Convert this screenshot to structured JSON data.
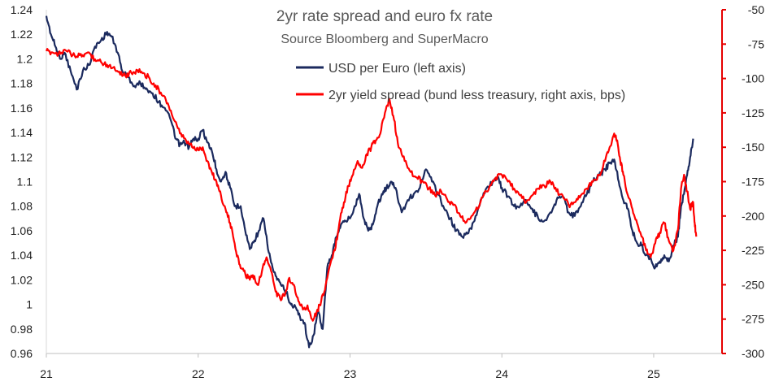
{
  "chart_data": {
    "type": "line",
    "title": "2yr rate spread and euro fx rate",
    "subtitle": "Source Bloomberg and SuperMacro",
    "x_ticks": [
      "21",
      "22",
      "23",
      "24",
      "25"
    ],
    "x_range": [
      2021.0,
      2025.45
    ],
    "left_axis": {
      "label": "USD per Euro",
      "range": [
        0.96,
        1.24
      ],
      "ticks": [
        "1.24",
        "1.22",
        "1.2",
        "1.18",
        "1.16",
        "1.14",
        "1.12",
        "1.1",
        "1.08",
        "1.06",
        "1.04",
        "1.02",
        "1",
        "0.98",
        "0.96"
      ],
      "color": "#1f1f1f"
    },
    "right_axis": {
      "label": "bps",
      "range": [
        -300,
        -50
      ],
      "ticks": [
        "-50",
        "-75",
        "-100",
        "-125",
        "-150",
        "-175",
        "-200",
        "-225",
        "-250",
        "-275",
        "-300"
      ],
      "color": "#e60000"
    },
    "legend": [
      "USD per Euro (left axis)",
      "2yr yield spread (bund less treasury, right axis, bps)"
    ],
    "series": [
      {
        "name": "USD per Euro (left axis)",
        "axis": "left",
        "color": "#1b2a5e",
        "points": [
          [
            2021.0,
            1.235
          ],
          [
            2021.03,
            1.22
          ],
          [
            2021.06,
            1.21
          ],
          [
            2021.09,
            1.2
          ],
          [
            2021.12,
            1.205
          ],
          [
            2021.16,
            1.19
          ],
          [
            2021.2,
            1.175
          ],
          [
            2021.24,
            1.19
          ],
          [
            2021.28,
            1.195
          ],
          [
            2021.32,
            1.21
          ],
          [
            2021.36,
            1.215
          ],
          [
            2021.4,
            1.222
          ],
          [
            2021.43,
            1.218
          ],
          [
            2021.47,
            1.205
          ],
          [
            2021.5,
            1.19
          ],
          [
            2021.54,
            1.185
          ],
          [
            2021.58,
            1.178
          ],
          [
            2021.62,
            1.18
          ],
          [
            2021.66,
            1.176
          ],
          [
            2021.7,
            1.172
          ],
          [
            2021.74,
            1.165
          ],
          [
            2021.78,
            1.16
          ],
          [
            2021.82,
            1.15
          ],
          [
            2021.85,
            1.135
          ],
          [
            2021.88,
            1.13
          ],
          [
            2021.91,
            1.132
          ],
          [
            2021.94,
            1.128
          ],
          [
            2021.97,
            1.135
          ],
          [
            2022.0,
            1.135
          ],
          [
            2022.03,
            1.142
          ],
          [
            2022.06,
            1.132
          ],
          [
            2022.09,
            1.125
          ],
          [
            2022.12,
            1.11
          ],
          [
            2022.15,
            1.1
          ],
          [
            2022.18,
            1.108
          ],
          [
            2022.21,
            1.095
          ],
          [
            2022.24,
            1.08
          ],
          [
            2022.28,
            1.08
          ],
          [
            2022.31,
            1.06
          ],
          [
            2022.34,
            1.045
          ],
          [
            2022.37,
            1.052
          ],
          [
            2022.4,
            1.06
          ],
          [
            2022.43,
            1.07
          ],
          [
            2022.46,
            1.045
          ],
          [
            2022.49,
            1.03
          ],
          [
            2022.52,
            1.02
          ],
          [
            2022.55,
            1.015
          ],
          [
            2022.58,
            1.01
          ],
          [
            2022.61,
            1.0
          ],
          [
            2022.64,
            0.998
          ],
          [
            2022.67,
            0.99
          ],
          [
            2022.7,
            0.985
          ],
          [
            2022.73,
            0.965
          ],
          [
            2022.76,
            0.975
          ],
          [
            2022.79,
            0.995
          ],
          [
            2022.82,
            0.98
          ],
          [
            2022.85,
            1.03
          ],
          [
            2022.88,
            1.04
          ],
          [
            2022.91,
            1.055
          ],
          [
            2022.94,
            1.065
          ],
          [
            2022.97,
            1.068
          ],
          [
            2023.0,
            1.07
          ],
          [
            2023.03,
            1.08
          ],
          [
            2023.06,
            1.09
          ],
          [
            2023.09,
            1.07
          ],
          [
            2023.12,
            1.06
          ],
          [
            2023.15,
            1.065
          ],
          [
            2023.18,
            1.08
          ],
          [
            2023.21,
            1.09
          ],
          [
            2023.24,
            1.095
          ],
          [
            2023.27,
            1.1
          ],
          [
            2023.3,
            1.095
          ],
          [
            2023.34,
            1.075
          ],
          [
            2023.38,
            1.085
          ],
          [
            2023.42,
            1.09
          ],
          [
            2023.46,
            1.095
          ],
          [
            2023.5,
            1.11
          ],
          [
            2023.54,
            1.1
          ],
          [
            2023.58,
            1.09
          ],
          [
            2023.62,
            1.078
          ],
          [
            2023.66,
            1.07
          ],
          [
            2023.7,
            1.06
          ],
          [
            2023.74,
            1.055
          ],
          [
            2023.78,
            1.058
          ],
          [
            2023.82,
            1.068
          ],
          [
            2023.86,
            1.085
          ],
          [
            2023.9,
            1.095
          ],
          [
            2023.94,
            1.1
          ],
          [
            2023.97,
            1.104
          ],
          [
            2024.0,
            1.095
          ],
          [
            2024.04,
            1.088
          ],
          [
            2024.08,
            1.08
          ],
          [
            2024.12,
            1.08
          ],
          [
            2024.16,
            1.085
          ],
          [
            2024.2,
            1.078
          ],
          [
            2024.24,
            1.07
          ],
          [
            2024.28,
            1.068
          ],
          [
            2024.32,
            1.075
          ],
          [
            2024.36,
            1.085
          ],
          [
            2024.4,
            1.088
          ],
          [
            2024.44,
            1.075
          ],
          [
            2024.48,
            1.072
          ],
          [
            2024.52,
            1.08
          ],
          [
            2024.56,
            1.09
          ],
          [
            2024.6,
            1.1
          ],
          [
            2024.64,
            1.105
          ],
          [
            2024.68,
            1.11
          ],
          [
            2024.71,
            1.115
          ],
          [
            2024.74,
            1.118
          ],
          [
            2024.77,
            1.1
          ],
          [
            2024.8,
            1.085
          ],
          [
            2024.83,
            1.078
          ],
          [
            2024.86,
            1.06
          ],
          [
            2024.89,
            1.05
          ],
          [
            2024.92,
            1.048
          ],
          [
            2024.95,
            1.04
          ],
          [
            2024.98,
            1.038
          ],
          [
            2025.01,
            1.03
          ],
          [
            2025.04,
            1.035
          ],
          [
            2025.07,
            1.04
          ],
          [
            2025.1,
            1.035
          ],
          [
            2025.13,
            1.048
          ],
          [
            2025.16,
            1.055
          ],
          [
            2025.18,
            1.08
          ],
          [
            2025.2,
            1.09
          ],
          [
            2025.22,
            1.105
          ],
          [
            2025.24,
            1.12
          ],
          [
            2025.26,
            1.135
          ]
        ]
      },
      {
        "name": "2yr yield spread (bund less treasury, right axis, bps)",
        "axis": "right",
        "color": "#ff0000",
        "points": [
          [
            2021.0,
            -80
          ],
          [
            2021.04,
            -81
          ],
          [
            2021.08,
            -82
          ],
          [
            2021.12,
            -79
          ],
          [
            2021.16,
            -82
          ],
          [
            2021.2,
            -84
          ],
          [
            2021.24,
            -83
          ],
          [
            2021.28,
            -81
          ],
          [
            2021.32,
            -86
          ],
          [
            2021.36,
            -88
          ],
          [
            2021.4,
            -90
          ],
          [
            2021.44,
            -92
          ],
          [
            2021.48,
            -95
          ],
          [
            2021.52,
            -98
          ],
          [
            2021.56,
            -96
          ],
          [
            2021.6,
            -94
          ],
          [
            2021.64,
            -96
          ],
          [
            2021.68,
            -100
          ],
          [
            2021.72,
            -105
          ],
          [
            2021.76,
            -112
          ],
          [
            2021.8,
            -118
          ],
          [
            2021.84,
            -130
          ],
          [
            2021.88,
            -140
          ],
          [
            2021.92,
            -145
          ],
          [
            2021.96,
            -150
          ],
          [
            2022.0,
            -152
          ],
          [
            2022.03,
            -150
          ],
          [
            2022.06,
            -160
          ],
          [
            2022.09,
            -168
          ],
          [
            2022.12,
            -175
          ],
          [
            2022.15,
            -185
          ],
          [
            2022.18,
            -195
          ],
          [
            2022.21,
            -205
          ],
          [
            2022.24,
            -220
          ],
          [
            2022.27,
            -235
          ],
          [
            2022.3,
            -240
          ],
          [
            2022.33,
            -245
          ],
          [
            2022.36,
            -243
          ],
          [
            2022.39,
            -250
          ],
          [
            2022.42,
            -240
          ],
          [
            2022.45,
            -230
          ],
          [
            2022.48,
            -240
          ],
          [
            2022.51,
            -255
          ],
          [
            2022.54,
            -260
          ],
          [
            2022.57,
            -258
          ],
          [
            2022.6,
            -245
          ],
          [
            2022.63,
            -250
          ],
          [
            2022.66,
            -262
          ],
          [
            2022.69,
            -268
          ],
          [
            2022.72,
            -265
          ],
          [
            2022.75,
            -275
          ],
          [
            2022.78,
            -270
          ],
          [
            2022.81,
            -262
          ],
          [
            2022.84,
            -250
          ],
          [
            2022.87,
            -235
          ],
          [
            2022.9,
            -225
          ],
          [
            2022.93,
            -205
          ],
          [
            2022.96,
            -190
          ],
          [
            2022.99,
            -178
          ],
          [
            2023.02,
            -170
          ],
          [
            2023.05,
            -160
          ],
          [
            2023.08,
            -165
          ],
          [
            2023.11,
            -155
          ],
          [
            2023.14,
            -150
          ],
          [
            2023.17,
            -145
          ],
          [
            2023.2,
            -140
          ],
          [
            2023.23,
            -125
          ],
          [
            2023.26,
            -115
          ],
          [
            2023.29,
            -130
          ],
          [
            2023.32,
            -150
          ],
          [
            2023.36,
            -160
          ],
          [
            2023.4,
            -168
          ],
          [
            2023.44,
            -172
          ],
          [
            2023.48,
            -175
          ],
          [
            2023.52,
            -180
          ],
          [
            2023.56,
            -185
          ],
          [
            2023.6,
            -182
          ],
          [
            2023.64,
            -188
          ],
          [
            2023.68,
            -192
          ],
          [
            2023.72,
            -198
          ],
          [
            2023.76,
            -205
          ],
          [
            2023.8,
            -200
          ],
          [
            2023.84,
            -195
          ],
          [
            2023.88,
            -185
          ],
          [
            2023.92,
            -178
          ],
          [
            2023.96,
            -172
          ],
          [
            2024.0,
            -170
          ],
          [
            2024.04,
            -175
          ],
          [
            2024.08,
            -180
          ],
          [
            2024.12,
            -185
          ],
          [
            2024.16,
            -190
          ],
          [
            2024.2,
            -185
          ],
          [
            2024.24,
            -180
          ],
          [
            2024.28,
            -178
          ],
          [
            2024.32,
            -175
          ],
          [
            2024.36,
            -182
          ],
          [
            2024.4,
            -185
          ],
          [
            2024.44,
            -192
          ],
          [
            2024.48,
            -190
          ],
          [
            2024.52,
            -185
          ],
          [
            2024.56,
            -180
          ],
          [
            2024.6,
            -175
          ],
          [
            2024.64,
            -170
          ],
          [
            2024.68,
            -160
          ],
          [
            2024.71,
            -150
          ],
          [
            2024.74,
            -140
          ],
          [
            2024.76,
            -145
          ],
          [
            2024.78,
            -160
          ],
          [
            2024.8,
            -170
          ],
          [
            2024.83,
            -185
          ],
          [
            2024.86,
            -195
          ],
          [
            2024.89,
            -205
          ],
          [
            2024.92,
            -215
          ],
          [
            2024.95,
            -225
          ],
          [
            2024.98,
            -230
          ],
          [
            2025.01,
            -220
          ],
          [
            2025.04,
            -212
          ],
          [
            2025.07,
            -205
          ],
          [
            2025.1,
            -218
          ],
          [
            2025.13,
            -225
          ],
          [
            2025.16,
            -210
          ],
          [
            2025.18,
            -180
          ],
          [
            2025.2,
            -170
          ],
          [
            2025.22,
            -182
          ],
          [
            2025.24,
            -195
          ],
          [
            2025.26,
            -190
          ],
          [
            2025.27,
            -205
          ],
          [
            2025.28,
            -215
          ]
        ]
      }
    ]
  }
}
